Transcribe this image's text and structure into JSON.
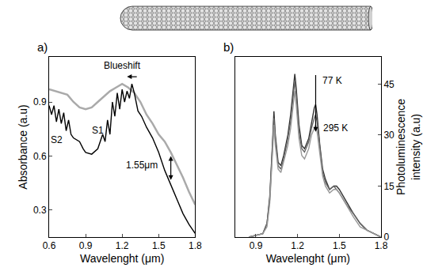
{
  "chart_data": [
    {
      "type": "line",
      "panel": "a)",
      "x_label": "Wavelenght (μm)",
      "y_label": "Absorbance (a.u)",
      "xlim": [
        0.6,
        1.8
      ],
      "xticks": [
        0.6,
        0.9,
        1.2,
        1.5,
        1.8
      ],
      "ylim": [
        0.15,
        1.15
      ],
      "yticks": [
        0.3,
        0.6,
        0.9
      ],
      "series": [
        {
          "color": "#aaaaaa",
          "x": [
            0.6,
            0.65,
            0.7,
            0.75,
            0.8,
            0.85,
            0.9,
            0.95,
            1.0,
            1.05,
            1.1,
            1.15,
            1.2,
            1.25,
            1.3,
            1.35,
            1.4,
            1.45,
            1.5,
            1.55,
            1.6,
            1.65,
            1.7,
            1.75,
            1.8
          ],
          "values": [
            0.97,
            0.96,
            0.95,
            0.94,
            0.9,
            0.87,
            0.86,
            0.87,
            0.9,
            0.93,
            0.96,
            0.98,
            1.0,
            0.98,
            0.95,
            0.9,
            0.83,
            0.78,
            0.72,
            0.68,
            0.62,
            0.55,
            0.48,
            0.4,
            0.33
          ]
        },
        {
          "color": "#000000",
          "x": [
            0.6,
            0.62,
            0.64,
            0.66,
            0.68,
            0.7,
            0.72,
            0.74,
            0.76,
            0.78,
            0.8,
            0.85,
            0.88,
            0.9,
            0.95,
            1.0,
            1.04,
            1.06,
            1.08,
            1.1,
            1.12,
            1.14,
            1.16,
            1.18,
            1.2,
            1.22,
            1.24,
            1.26,
            1.28,
            1.3,
            1.33,
            1.36,
            1.4,
            1.45,
            1.5,
            1.55,
            1.6,
            1.65,
            1.7,
            1.75,
            1.8
          ],
          "values": [
            0.88,
            0.83,
            0.88,
            0.79,
            0.86,
            0.78,
            0.84,
            0.74,
            0.8,
            0.72,
            0.7,
            0.68,
            0.64,
            0.62,
            0.61,
            0.64,
            0.72,
            0.68,
            0.8,
            0.72,
            0.9,
            0.82,
            0.95,
            0.86,
            0.97,
            0.9,
            0.96,
            0.92,
            1.0,
            0.95,
            0.85,
            0.82,
            0.76,
            0.7,
            0.62,
            0.52,
            0.44,
            0.36,
            0.28,
            0.22,
            0.17
          ]
        }
      ],
      "annotations": [
        {
          "text": "Blueshift",
          "x": 1.2,
          "y": 1.1
        },
        {
          "text": "S2",
          "x": 0.66,
          "y": 0.69
        },
        {
          "text": "S1",
          "x": 1.0,
          "y": 0.74
        },
        {
          "text": "1.55μm",
          "x": 1.36,
          "y": 0.55
        }
      ],
      "arrows": [
        {
          "x0": 1.33,
          "y0": 1.04,
          "x1": 1.24,
          "y1": 1.04,
          "line_style": "single"
        },
        {
          "x0": 1.6,
          "y0": 0.46,
          "x1": 1.6,
          "y1": 0.6,
          "line_style": "double"
        }
      ]
    },
    {
      "type": "line",
      "panel": "b)",
      "x_label": "Wavelenght (μm)",
      "y_label": "Photoluminescence intensity (a.u)",
      "xlim": [
        0.75,
        1.8
      ],
      "xticks": [
        0.9,
        1.2,
        1.5,
        1.8
      ],
      "ylim": [
        0,
        53
      ],
      "yticks": [
        0,
        15,
        30,
        45
      ],
      "x": [
        0.85,
        0.9,
        0.95,
        0.98,
        1.0,
        1.02,
        1.03,
        1.04,
        1.06,
        1.08,
        1.1,
        1.13,
        1.15,
        1.17,
        1.18,
        1.19,
        1.21,
        1.23,
        1.25,
        1.28,
        1.3,
        1.32,
        1.33,
        1.34,
        1.36,
        1.38,
        1.4,
        1.43,
        1.46,
        1.48,
        1.5,
        1.53,
        1.56,
        1.6,
        1.65,
        1.7,
        1.75,
        1.8
      ],
      "series": [
        {
          "color": "#333333",
          "values": [
            0,
            0.5,
            1,
            4,
            12,
            28,
            37,
            30,
            22,
            21,
            24,
            30,
            36,
            44,
            48,
            44,
            33,
            27,
            26,
            29,
            34,
            38,
            39,
            36,
            27,
            20,
            17,
            14,
            15,
            15,
            14,
            12,
            10,
            7,
            4,
            2,
            1,
            0
          ]
        },
        {
          "color": "#666666",
          "values": [
            0,
            0.5,
            1,
            4,
            11,
            27,
            35,
            29,
            21,
            20,
            23,
            29,
            34,
            42,
            46,
            42,
            31,
            26,
            25,
            28,
            32,
            35,
            36,
            34,
            26,
            19,
            16,
            14,
            15,
            14,
            13,
            11,
            9,
            7,
            4,
            2,
            1,
            0
          ]
        },
        {
          "color": "#999999",
          "values": [
            0,
            0.5,
            1,
            3,
            10,
            25,
            33,
            27,
            20,
            19,
            22,
            27,
            32,
            40,
            43,
            39,
            29,
            24,
            23,
            26,
            30,
            32,
            33,
            31,
            24,
            18,
            15,
            13,
            14,
            14,
            13,
            11,
            9,
            6,
            3,
            2,
            1,
            0
          ]
        }
      ],
      "annotations": [
        {
          "text": "77 K",
          "x": 1.45,
          "y": 46
        },
        {
          "text": "295 K",
          "x": 1.47,
          "y": 32
        }
      ],
      "arrows": [
        {
          "x0": 1.33,
          "y0": 48,
          "x1": 1.33,
          "y1": 31,
          "line_style": "single"
        }
      ]
    }
  ]
}
